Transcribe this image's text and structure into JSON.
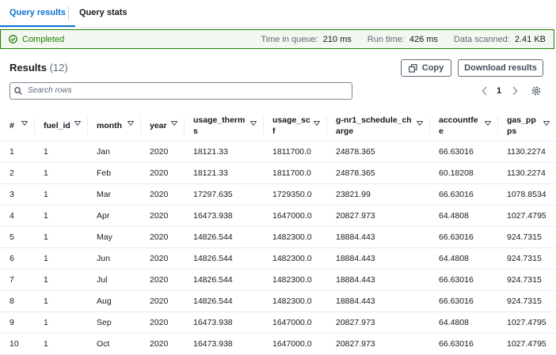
{
  "tabs": [
    "Query results",
    "Query stats"
  ],
  "status": {
    "state": "Completed",
    "time_in_queue_label": "Time in queue:",
    "time_in_queue": "210 ms",
    "run_time_label": "Run time:",
    "run_time": "426 ms",
    "data_scanned_label": "Data scanned:",
    "data_scanned": "2.41 KB"
  },
  "results": {
    "title": "Results",
    "count": "(12)",
    "copy": "Copy",
    "download": "Download results",
    "search_placeholder": "Search rows",
    "page": "1"
  },
  "table": {
    "columns": [
      "#",
      "fuel_id",
      "month",
      "year",
      "usage_therms",
      "usage_scf",
      "g-nr1_schedule_charge",
      "accountfee",
      "gas_ppps"
    ],
    "rows": [
      [
        "1",
        "1",
        "Jan",
        "2020",
        "18121.33",
        "1811700.0",
        "24878.365",
        "66.63016",
        "1130.2274"
      ],
      [
        "2",
        "1",
        "Feb",
        "2020",
        "18121.33",
        "1811700.0",
        "24878.365",
        "60.18208",
        "1130.2274"
      ],
      [
        "3",
        "1",
        "Mar",
        "2020",
        "17297.635",
        "1729350.0",
        "23821.99",
        "66.63016",
        "1078.8534"
      ],
      [
        "4",
        "1",
        "Apr",
        "2020",
        "16473.938",
        "1647000.0",
        "20827.973",
        "64.4808",
        "1027.4795"
      ],
      [
        "5",
        "1",
        "May",
        "2020",
        "14826.544",
        "1482300.0",
        "18884.443",
        "66.63016",
        "924.7315"
      ],
      [
        "6",
        "1",
        "Jun",
        "2020",
        "14826.544",
        "1482300.0",
        "18884.443",
        "64.4808",
        "924.7315"
      ],
      [
        "7",
        "1",
        "Jul",
        "2020",
        "14826.544",
        "1482300.0",
        "18884.443",
        "66.63016",
        "924.7315"
      ],
      [
        "8",
        "1",
        "Aug",
        "2020",
        "14826.544",
        "1482300.0",
        "18884.443",
        "66.63016",
        "924.7315"
      ],
      [
        "9",
        "1",
        "Sep",
        "2020",
        "16473.938",
        "1647000.0",
        "20827.973",
        "64.4808",
        "1027.4795"
      ],
      [
        "10",
        "1",
        "Oct",
        "2020",
        "16473.938",
        "1647000.0",
        "20827.973",
        "66.63016",
        "1027.4795"
      ]
    ]
  }
}
